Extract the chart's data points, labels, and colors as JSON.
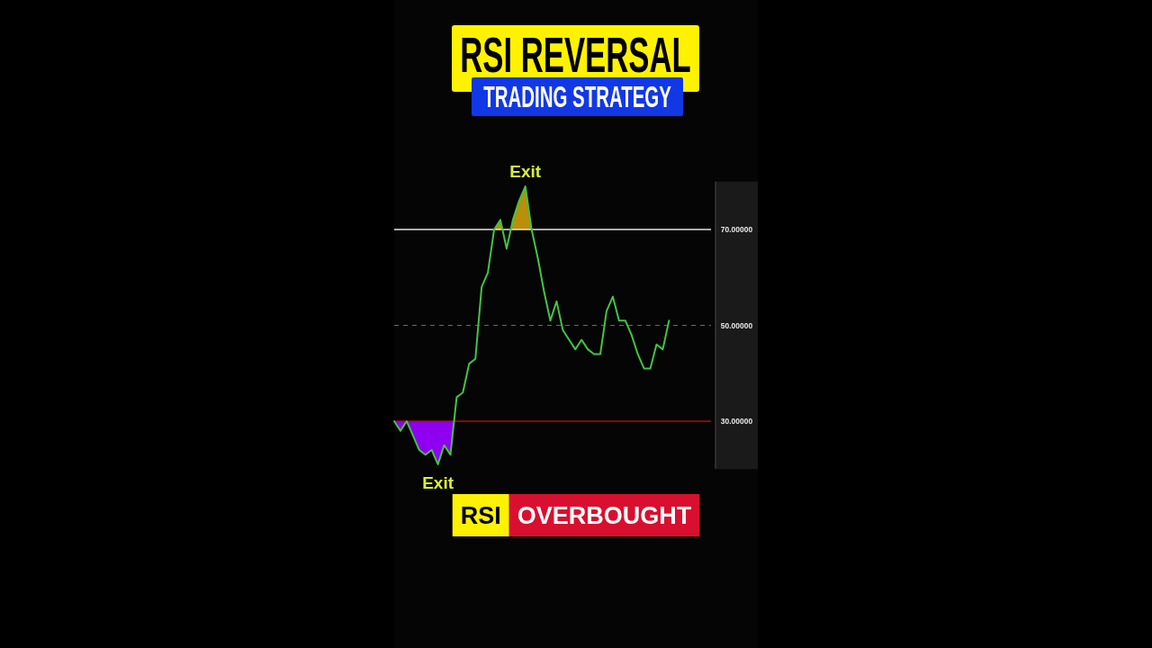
{
  "chart_data": {
    "type": "line",
    "title": "RSI REVERSAL",
    "subtitle": "TRADING STRATEGY",
    "categories": [
      null,
      null,
      null,
      null,
      null,
      null,
      null,
      null,
      null,
      null,
      null,
      null,
      null,
      null,
      null,
      null,
      null,
      null,
      null,
      null,
      null,
      null,
      null,
      null,
      null,
      null,
      null,
      null,
      null,
      null,
      null,
      null,
      null,
      null,
      null,
      null,
      null,
      null,
      null,
      null,
      null,
      null,
      null,
      null,
      null
    ],
    "series": [
      {
        "color": "#43c443",
        "values": [
          30,
          28,
          30,
          27,
          24,
          23,
          24,
          21,
          25,
          23,
          35,
          36,
          42,
          43,
          58,
          61,
          70,
          72,
          66,
          72,
          76,
          79,
          70,
          64,
          57,
          51,
          55,
          49,
          47,
          45,
          47,
          45,
          44,
          44,
          53,
          56,
          51,
          51,
          48,
          44,
          41,
          41,
          46,
          45,
          51
        ]
      }
    ],
    "ylim": [
      20,
      80
    ],
    "yticks": [
      {
        "value": 30,
        "label": "30.00000"
      },
      {
        "value": 50,
        "label": "50.00000"
      },
      {
        "value": 70,
        "label": "70.00000"
      }
    ],
    "tick_labels": "y",
    "ref_lines": [
      {
        "axis": "y",
        "value": 70,
        "color": "#e6e6e6"
      },
      {
        "axis": "y",
        "value": 50,
        "color": "#6e6a50",
        "line_style": "dashed"
      },
      {
        "axis": "y",
        "value": 30,
        "color": "#a3101c"
      }
    ],
    "annotations": [
      "RSI",
      "OVERBOUGHT",
      {
        "text": "Exit",
        "y": 79
      },
      {
        "text": "Exit",
        "y": 21
      }
    ]
  }
}
